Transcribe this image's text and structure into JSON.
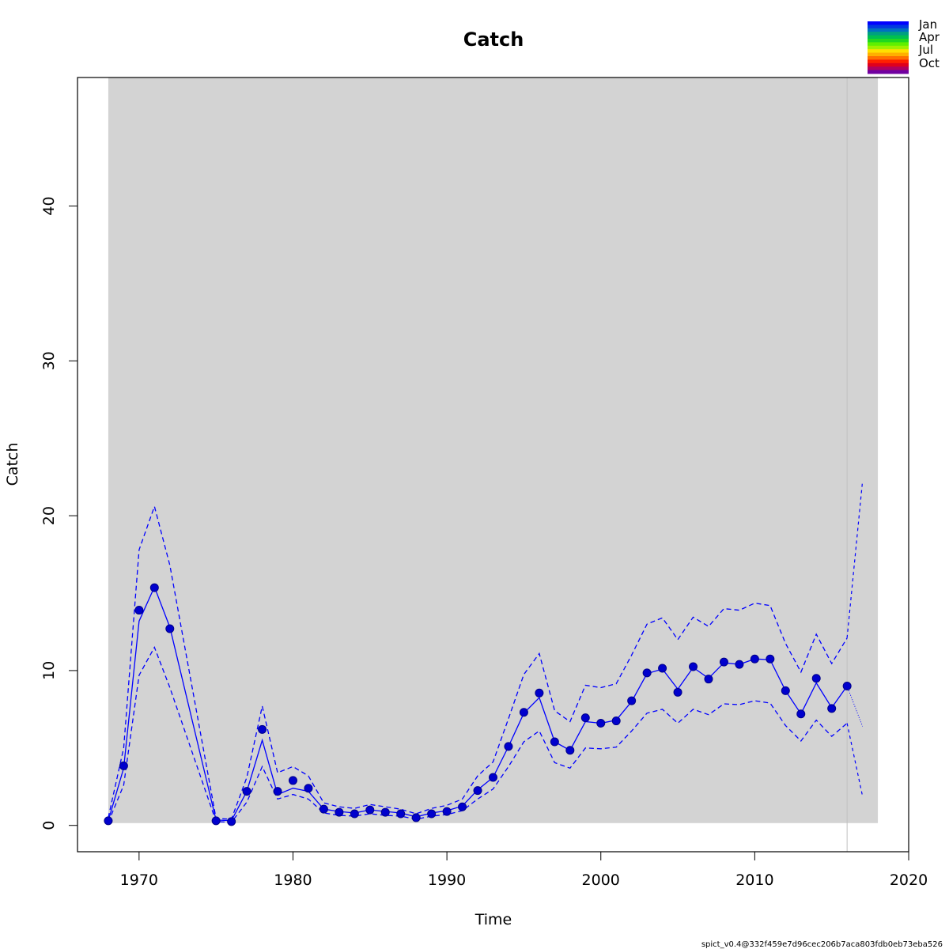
{
  "chart_data": {
    "type": "line",
    "title": "Catch",
    "xlabel": "Time",
    "ylabel": "Catch",
    "xlim": [
      1966,
      2020
    ],
    "ylim": [
      -1.7,
      48.3
    ],
    "x_ticks": [
      "1970",
      "1980",
      "1990",
      "2000",
      "2010",
      "2020"
    ],
    "y_ticks": [
      "0",
      "10",
      "20",
      "30",
      "40"
    ],
    "shaded_region": [
      1968,
      2018
    ],
    "vertical_line_x": 2016,
    "colors": {
      "series": "#0000ff",
      "points": "#0000cd",
      "shade": "#d3d3d3",
      "vline": "#c0c0c0"
    },
    "legend_labels": [
      "Jan",
      "Apr",
      "Jul",
      "Oct"
    ],
    "legend_colors": [
      "#0000ff",
      "#0038e0",
      "#0070c0",
      "#00a080",
      "#00c050",
      "#20d820",
      "#60f000",
      "#a0f000",
      "#ffe000",
      "#ffb000",
      "#ff7000",
      "#ff2000",
      "#e0001c",
      "#b00060",
      "#7000a0"
    ],
    "observed": {
      "x": [
        1968,
        1969,
        1970,
        1971,
        1972,
        1975,
        1976,
        1977,
        1978,
        1979,
        1980,
        1981,
        1982,
        1983,
        1984,
        1985,
        1986,
        1987,
        1988,
        1989,
        1990,
        1991,
        1992,
        1993,
        1994,
        1995,
        1996,
        1997,
        1998,
        1999,
        2000,
        2001,
        2002,
        2003,
        2004,
        2005,
        2006,
        2007,
        2008,
        2009,
        2010,
        2011,
        2012,
        2013,
        2014,
        2015,
        2016
      ],
      "y": [
        0.3,
        3.85,
        13.9,
        15.35,
        12.7,
        0.3,
        0.25,
        2.2,
        6.2,
        2.2,
        2.9,
        2.4,
        1.05,
        0.85,
        0.75,
        1.0,
        0.85,
        0.75,
        0.5,
        0.75,
        0.9,
        1.2,
        2.25,
        3.1,
        5.1,
        7.3,
        8.55,
        5.4,
        4.85,
        6.95,
        6.6,
        6.75,
        8.05,
        9.85,
        10.15,
        8.6,
        10.25,
        9.45,
        10.55,
        10.4,
        10.75,
        10.75,
        8.7,
        7.2,
        9.5,
        7.55,
        9.0
      ]
    },
    "estimate": {
      "x": [
        1968,
        1969,
        1970,
        1971,
        1972,
        1975,
        1976,
        1977,
        1978,
        1979,
        1980,
        1981,
        1982,
        1983,
        1984,
        1985,
        1986,
        1987,
        1988,
        1989,
        1990,
        1991,
        1992,
        1993,
        1994,
        1995,
        1996,
        1997,
        1998,
        1999,
        2000,
        2001,
        2002,
        2003,
        2004,
        2005,
        2006,
        2007,
        2008,
        2009,
        2010,
        2011,
        2012,
        2013,
        2014,
        2015,
        2016
      ],
      "y": [
        0.3,
        3.7,
        13.2,
        15.4,
        12.8,
        0.35,
        0.3,
        2.2,
        5.5,
        2.0,
        2.4,
        2.2,
        1.05,
        0.9,
        0.8,
        1.0,
        0.9,
        0.8,
        0.55,
        0.8,
        0.95,
        1.25,
        2.3,
        3.1,
        5.1,
        7.25,
        8.25,
        5.4,
        4.85,
        6.7,
        6.6,
        6.8,
        8.0,
        9.8,
        10.1,
        8.8,
        10.2,
        9.5,
        10.5,
        10.4,
        10.75,
        10.7,
        8.7,
        7.2,
        9.2,
        7.6,
        9.0
      ]
    },
    "ci_lower": {
      "x": [
        1968,
        1969,
        1970,
        1971,
        1972,
        1975,
        1976,
        1977,
        1978,
        1979,
        1980,
        1981,
        1982,
        1983,
        1984,
        1985,
        1986,
        1987,
        1988,
        1989,
        1990,
        1991,
        1992,
        1993,
        1994,
        1995,
        1996,
        1997,
        1998,
        1999,
        2000,
        2001,
        2002,
        2003,
        2004,
        2005,
        2006,
        2007,
        2008,
        2009,
        2010,
        2011,
        2012,
        2013,
        2014,
        2015,
        2016
      ],
      "y": [
        0.2,
        2.6,
        9.7,
        11.5,
        8.9,
        0.25,
        0.2,
        1.5,
        3.8,
        1.7,
        2.0,
        1.7,
        0.8,
        0.65,
        0.6,
        0.75,
        0.65,
        0.6,
        0.4,
        0.6,
        0.7,
        0.95,
        1.7,
        2.35,
        3.8,
        5.4,
        6.1,
        4.05,
        3.7,
        5.0,
        4.95,
        5.05,
        6.1,
        7.25,
        7.5,
        6.6,
        7.5,
        7.15,
        7.85,
        7.8,
        8.05,
        7.9,
        6.45,
        5.45,
        6.8,
        5.75,
        6.6
      ]
    },
    "ci_upper": {
      "x": [
        1968,
        1969,
        1970,
        1971,
        1972,
        1975,
        1976,
        1977,
        1978,
        1979,
        1980,
        1981,
        1982,
        1983,
        1984,
        1985,
        1986,
        1987,
        1988,
        1989,
        1990,
        1991,
        1992,
        1993,
        1994,
        1995,
        1996,
        1997,
        1998,
        1999,
        2000,
        2001,
        2002,
        2003,
        2004,
        2005,
        2006,
        2007,
        2008,
        2009,
        2010,
        2011,
        2012,
        2013,
        2014,
        2015,
        2016
      ],
      "y": [
        0.5,
        5.0,
        17.8,
        20.6,
        16.8,
        0.45,
        0.4,
        3.1,
        7.7,
        3.4,
        3.8,
        3.2,
        1.45,
        1.2,
        1.1,
        1.35,
        1.2,
        1.05,
        0.75,
        1.1,
        1.3,
        1.7,
        3.2,
        4.1,
        6.9,
        9.75,
        11.1,
        7.4,
        6.7,
        9.05,
        8.9,
        9.15,
        11.0,
        13.0,
        13.4,
        12.0,
        13.45,
        12.85,
        14.0,
        13.9,
        14.35,
        14.2,
        11.75,
        9.9,
        12.35,
        10.45,
        12.1
      ]
    },
    "forecast": {
      "x": [
        2016,
        2017
      ],
      "y": [
        9.0,
        6.4
      ]
    },
    "forecast_ci_lower": {
      "x": [
        2016,
        2017
      ],
      "y": [
        6.6,
        1.9
      ]
    },
    "forecast_ci_upper": {
      "x": [
        2016,
        2017
      ],
      "y": [
        12.1,
        22.2
      ]
    }
  },
  "footer": "spict_v0.4@332f459e7d96cec206b7aca803fdb0eb73eba526"
}
